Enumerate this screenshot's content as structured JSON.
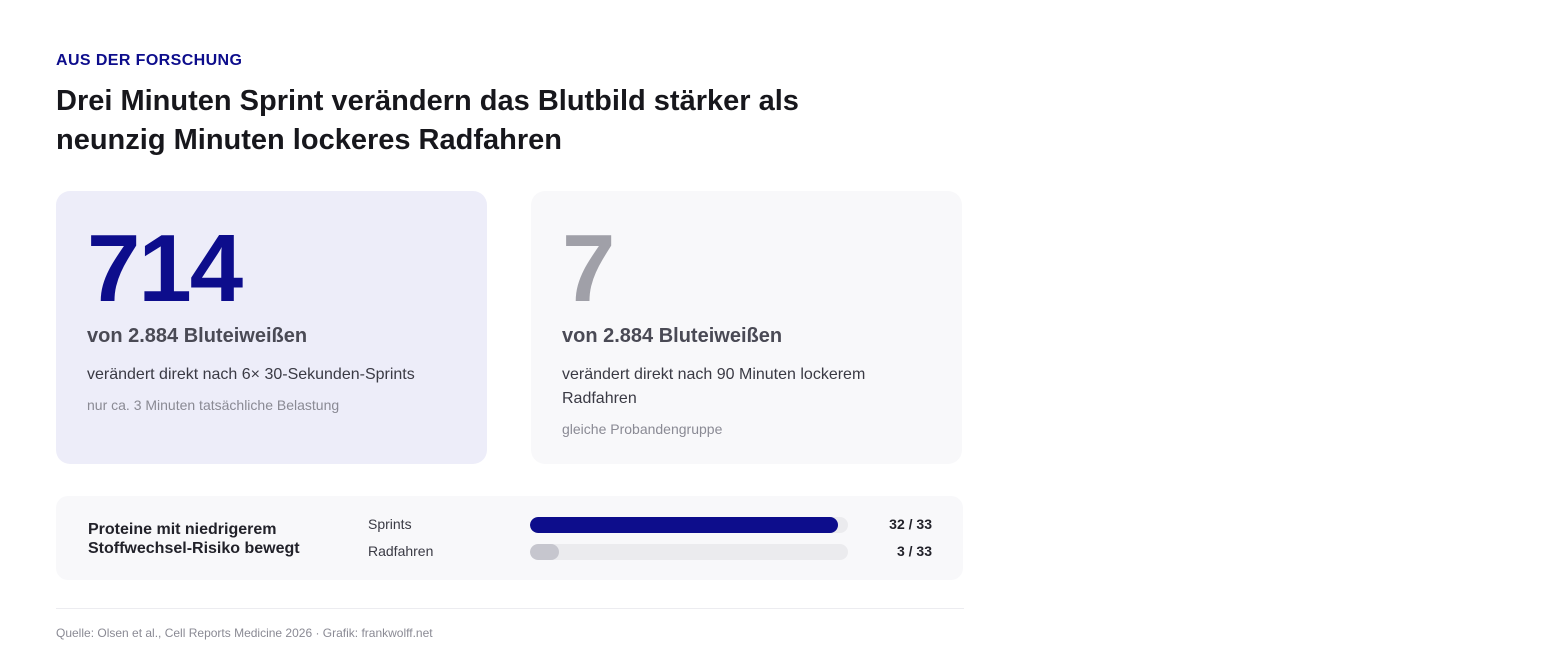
{
  "kicker": "AUS DER FORSCHUNG",
  "headline": "Drei Minuten Sprint verändern das Blutbild stärker als neunzig Minuten lockeres Radfahren",
  "cards": [
    {
      "number": "714",
      "of_text": "von 2.884 Bluteiweißen",
      "description": "verändert direkt nach 6× 30-Sekunden-Sprints",
      "note": "nur ca. 3 Minuten tatsächliche Belastung"
    },
    {
      "number": "7",
      "of_text": "von 2.884 Bluteiweißen",
      "description": "verändert direkt nach 90 Minuten lockerem Radfahren",
      "note": "gleiche Probandengruppe"
    }
  ],
  "chart_data": {
    "type": "bar",
    "orientation": "horizontal",
    "title": "Proteine mit niedrigerem Stoffwechsel-Risiko bewegt",
    "categories": [
      "Sprints",
      "Radfahren"
    ],
    "values": [
      32,
      3
    ],
    "max": 33,
    "value_labels": [
      "32 / 33",
      "3 / 33"
    ],
    "colors": [
      "#0d0d8c",
      "#c6c6ce"
    ]
  },
  "source": "Quelle: Olsen et al., Cell Reports Medicine 2026 · Grafik: frankwolff.net",
  "colors": {
    "accent": "#0d0d8c",
    "muted_number": "#a0a0a8",
    "primary_card_bg": "#ededf9",
    "secondary_card_bg": "#f8f8fa"
  }
}
